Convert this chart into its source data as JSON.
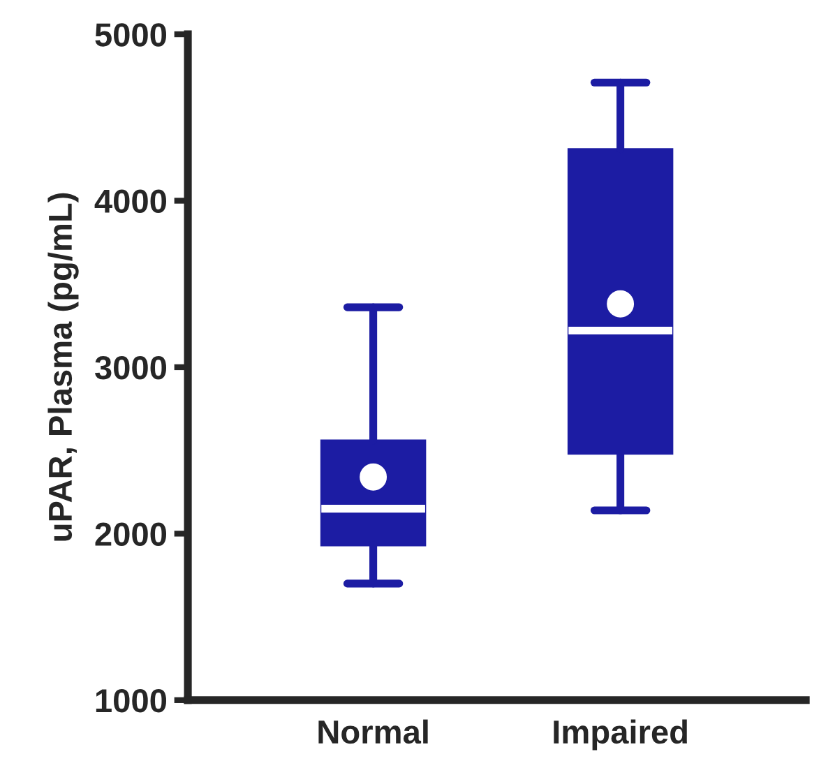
{
  "chart_data": {
    "type": "box",
    "ylabel": "uPAR, Plasma (pg/mL)",
    "categories": [
      "Normal",
      "Impaired"
    ],
    "ylim": [
      1000,
      5000
    ],
    "yticks": [
      1000,
      2000,
      3000,
      4000,
      5000
    ],
    "grid": false,
    "series": [
      {
        "color": "#1c1ca3",
        "boxes": [
          {
            "low": 1700,
            "q1": 1930,
            "median": 2150,
            "q3": 2560,
            "high": 3360,
            "mean": 2340
          },
          {
            "low": 2140,
            "q1": 2480,
            "median": 3220,
            "q3": 4310,
            "high": 4710,
            "mean": 3380
          }
        ]
      }
    ]
  }
}
